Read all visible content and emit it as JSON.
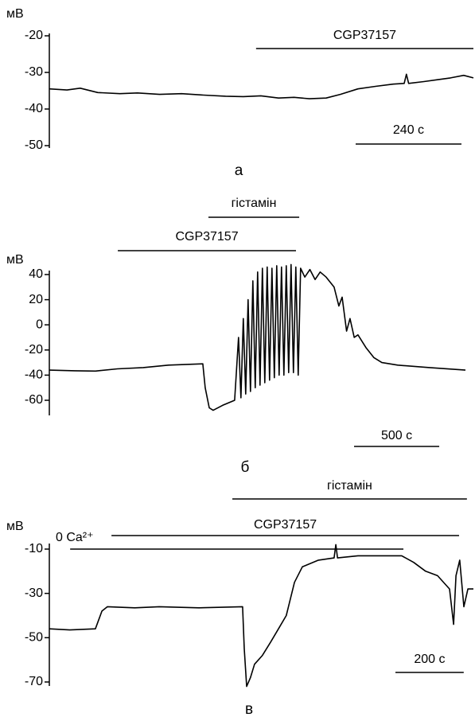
{
  "chart_data": [
    {
      "type": "line",
      "y_label": "мВ",
      "caption": "а",
      "color": "#000000",
      "xlim": [
        0,
        962
      ],
      "ylim": [
        -50,
        -20
      ],
      "yticks": [
        -20,
        -30,
        -40,
        -50
      ],
      "x": [
        0,
        40,
        70,
        110,
        160,
        200,
        250,
        300,
        350,
        400,
        440,
        480,
        520,
        555,
        590,
        628,
        660,
        700,
        740,
        780,
        805,
        810,
        815,
        850,
        880,
        910,
        940,
        962
      ],
      "values": [
        -34.5,
        -34.8,
        -34.3,
        -35.5,
        -35.8,
        -35.6,
        -36,
        -35.8,
        -36.2,
        -36.5,
        -36.6,
        -36.4,
        -37,
        -36.8,
        -37.2,
        -37,
        -36,
        -34.5,
        -33.8,
        -33.2,
        -33,
        -30.5,
        -33,
        -32.5,
        -32,
        -31.5,
        -30.8,
        -31.5
      ],
      "scale_bar": {
        "value": 240,
        "label": "240 с"
      },
      "annotations": [
        {
          "text": "CGP37157",
          "start": 469,
          "end": 962
        }
      ]
    },
    {
      "type": "line",
      "y_label": "мВ",
      "caption": "б",
      "color": "#000000",
      "xlim": [
        0,
        2443
      ],
      "ylim": [
        -60,
        40
      ],
      "yticks": [
        40,
        20,
        0,
        -20,
        -40,
        -60
      ],
      "x": [
        0,
        150,
        271,
        400,
        551,
        700,
        901,
        915,
        939,
        962,
        1018,
        1088,
        1111,
        1125,
        1139,
        1153,
        1167,
        1181,
        1195,
        1209,
        1223,
        1237,
        1251,
        1265,
        1279,
        1293,
        1307,
        1321,
        1335,
        1349,
        1363,
        1377,
        1391,
        1405,
        1419,
        1433,
        1447,
        1461,
        1475,
        1500,
        1530,
        1560,
        1590,
        1625,
        1672,
        1700,
        1719,
        1745,
        1765,
        1790,
        1812,
        1858,
        1905,
        1952,
        2045,
        2232,
        2443
      ],
      "values": [
        -36,
        -36.5,
        -36.8,
        -35,
        -34,
        -32,
        -31,
        -50,
        -66,
        -68,
        -64,
        -60,
        -10,
        -58,
        5,
        -55,
        20,
        -53,
        35,
        -50,
        42,
        -48,
        45,
        -46,
        46,
        -44,
        45,
        -42,
        47,
        -40,
        46,
        -40,
        47,
        -38,
        48,
        -38,
        46,
        -40,
        45,
        38,
        44,
        36,
        42,
        38,
        30,
        15,
        22,
        -5,
        5,
        -10,
        -8,
        -18,
        -26,
        -30,
        -32,
        -34,
        -36
      ],
      "scale_bar": {
        "value": 500,
        "label": "500 с"
      },
      "annotations": [
        {
          "text": "гістамін",
          "start": 934,
          "end": 1467
        },
        {
          "text": "CGP37157",
          "start": 402,
          "end": 1448
        }
      ]
    },
    {
      "type": "line",
      "y_label": "мВ",
      "caption": "в",
      "color": "#000000",
      "xlim": [
        0,
        1242
      ],
      "ylim": [
        -70,
        -10
      ],
      "yticks": [
        -10,
        -30,
        -50,
        -70
      ],
      "x": [
        0,
        60,
        135,
        154,
        170,
        250,
        322,
        438,
        566,
        571,
        578,
        589,
        601,
        624,
        648,
        671,
        694,
        718,
        741,
        788,
        834,
        839,
        844,
        904,
        974,
        1032,
        1067,
        1102,
        1137,
        1172,
        1184,
        1191,
        1202,
        1214,
        1226,
        1242
      ],
      "values": [
        -46,
        -46.5,
        -46,
        -38,
        -36,
        -36.5,
        -36,
        -36.5,
        -36,
        -55,
        -72,
        -68,
        -62,
        -58,
        -52,
        -46,
        -40,
        -25,
        -18,
        -15,
        -14,
        -8,
        -14,
        -13,
        -13,
        -13,
        -16,
        -20,
        -22,
        -28,
        -44,
        -22,
        -15,
        -36,
        -28,
        -28
      ],
      "scale_bar": {
        "value": 200,
        "label": "200 с"
      },
      "annotations": [
        {
          "text": "гістамін",
          "start": 536,
          "end": 1223
        },
        {
          "text": "CGP37157",
          "start": 182,
          "end": 1200
        },
        {
          "text": "0 Ca²⁺",
          "start": 61,
          "end": 1037
        }
      ]
    }
  ]
}
